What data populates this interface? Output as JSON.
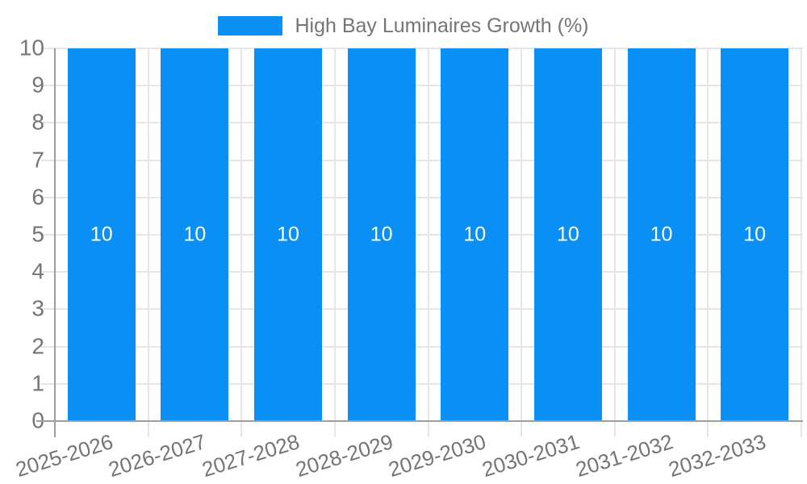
{
  "legend": {
    "series_label": "High Bay Luminaires Growth (%)"
  },
  "chart_data": {
    "type": "bar",
    "title": "High Bay Luminaires Growth (%)",
    "categories": [
      "2025-2026",
      "2026-2027",
      "2027-2028",
      "2028-2029",
      "2029-2030",
      "2030-2031",
      "2031-2032",
      "2032-2033"
    ],
    "values": [
      10,
      10,
      10,
      10,
      10,
      10,
      10,
      10
    ],
    "bar_value_labels": [
      "10",
      "10",
      "10",
      "10",
      "10",
      "10",
      "10",
      "10"
    ],
    "xlabel": "",
    "ylabel": "",
    "ylim": [
      0,
      10
    ],
    "y_ticks": [
      0,
      1,
      2,
      3,
      4,
      5,
      6,
      7,
      8,
      9,
      10
    ],
    "grid": true,
    "legend_position": "top-center",
    "colors": {
      "bar": "#0a90f5",
      "text": "#757575",
      "gridline": "#e6e6e6",
      "axis": "#9e9e9e",
      "bar_label": "#ffffff",
      "background": "#ffffff"
    }
  }
}
